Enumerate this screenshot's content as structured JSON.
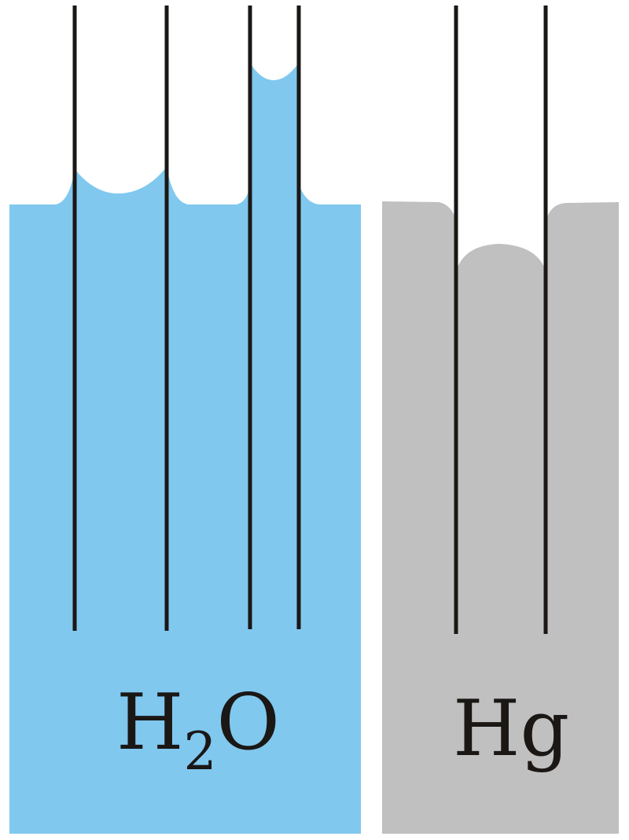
{
  "water": {
    "label_main": "H",
    "label_subscript": "2",
    "label_tail": "O",
    "color": "#80c8ee"
  },
  "mercury": {
    "label": "Hg",
    "color": "#c0c0c0"
  },
  "tube_color": "#1a1715"
}
